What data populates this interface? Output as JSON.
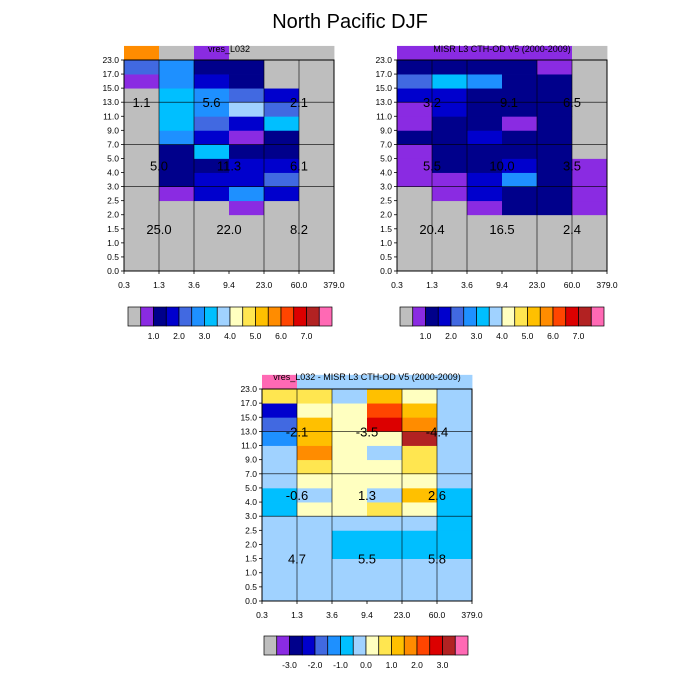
{
  "title": "North Pacific DJF",
  "axes": {
    "y_ticks": [
      "0.0",
      "0.5",
      "1.0",
      "1.5",
      "2.0",
      "2.5",
      "3.0",
      "4.0",
      "5.0",
      "7.0",
      "9.0",
      "11.0",
      "13.0",
      "15.0",
      "17.0",
      "23.0"
    ],
    "x_ticks": [
      "0.3",
      "1.3",
      "3.6",
      "9.4",
      "23.0",
      "60.0",
      "379.0"
    ],
    "y_major": [
      6,
      9,
      12
    ],
    "x_major": [
      1,
      2,
      4,
      5
    ]
  },
  "colorbars": [
    {
      "colors": [
        "#bebebe",
        "#8a2be2",
        "#00008b",
        "#0000cd",
        "#4169e1",
        "#1e90ff",
        "#00bfff",
        "#a0d2ff",
        "#ffffc0",
        "#ffe650",
        "#ffc000",
        "#ff8c00",
        "#ff4500",
        "#dc0000",
        "#b22222",
        "#ff69b4"
      ],
      "labels": [
        "1.0",
        "2.0",
        "3.0",
        "4.0",
        "5.0",
        "6.0",
        "7.0"
      ],
      "label_slots": [
        2,
        4,
        6,
        8,
        10,
        12,
        14
      ]
    },
    {
      "colors": [
        "#bebebe",
        "#8a2be2",
        "#00008b",
        "#0000cd",
        "#4169e1",
        "#1e90ff",
        "#00bfff",
        "#a0d2ff",
        "#ffffc0",
        "#ffe650",
        "#ffc000",
        "#ff8c00",
        "#ff4500",
        "#dc0000",
        "#b22222",
        "#ff69b4"
      ],
      "labels": [
        "1.0",
        "2.0",
        "3.0",
        "4.0",
        "5.0",
        "6.0",
        "7.0"
      ],
      "label_slots": [
        2,
        4,
        6,
        8,
        10,
        12,
        14
      ]
    },
    {
      "colors": [
        "#bebebe",
        "#8a2be2",
        "#00008b",
        "#0000cd",
        "#4169e1",
        "#1e90ff",
        "#00bfff",
        "#a0d2ff",
        "#ffffc0",
        "#ffe650",
        "#ffc000",
        "#ff8c00",
        "#ff4500",
        "#dc0000",
        "#b22222",
        "#ff69b4"
      ],
      "labels": [
        "-3.0",
        "-2.0",
        "-1.0",
        "0.0",
        "1.0",
        "2.0",
        "3.0"
      ],
      "label_slots": [
        2,
        4,
        6,
        8,
        10,
        12,
        14
      ]
    }
  ],
  "chart_data": [
    {
      "type": "heatmap",
      "title": "vres_L032",
      "colorbar": 0,
      "grid": [
        [
          0,
          0,
          0,
          0,
          0,
          0
        ],
        [
          0,
          0,
          0,
          0,
          0,
          0
        ],
        [
          0,
          0,
          0,
          0,
          0,
          0
        ],
        [
          0,
          0,
          0,
          0,
          0,
          0
        ],
        [
          0,
          0,
          0,
          1,
          0,
          0
        ],
        [
          0,
          1,
          3,
          5,
          3,
          0
        ],
        [
          0,
          2,
          3,
          3,
          4,
          0
        ],
        [
          0,
          2,
          2,
          3,
          3,
          0
        ],
        [
          0,
          2,
          6,
          2,
          2,
          0
        ],
        [
          0,
          5,
          3,
          1,
          2,
          0
        ],
        [
          0,
          6,
          4,
          3,
          6,
          0
        ],
        [
          0,
          6,
          5,
          7,
          4,
          0
        ],
        [
          0,
          6,
          5,
          4,
          3,
          0
        ],
        [
          1,
          5,
          3,
          2,
          0,
          0
        ],
        [
          4,
          5,
          2,
          2,
          0,
          0
        ],
        [
          11,
          0,
          1,
          0,
          0,
          0
        ]
      ],
      "cell_labels": [
        {
          "text": "1.1",
          "col": 0.5,
          "row": 12.0
        },
        {
          "text": "5.6",
          "col": 2.5,
          "row": 12.0
        },
        {
          "text": "2.1",
          "col": 5.0,
          "row": 12.0
        },
        {
          "text": "5.0",
          "col": 1.0,
          "row": 7.5
        },
        {
          "text": "11.3",
          "col": 3.0,
          "row": 7.5
        },
        {
          "text": "6.1",
          "col": 5.0,
          "row": 7.5
        },
        {
          "text": "25.0",
          "col": 1.0,
          "row": 3.0
        },
        {
          "text": "22.0",
          "col": 3.0,
          "row": 3.0
        },
        {
          "text": "8.2",
          "col": 5.0,
          "row": 3.0
        }
      ]
    },
    {
      "type": "heatmap",
      "title": "MISR L3 CTH-OD V5 (2000-2009)",
      "colorbar": 1,
      "grid": [
        [
          0,
          0,
          0,
          0,
          0,
          0
        ],
        [
          0,
          0,
          0,
          0,
          0,
          0
        ],
        [
          0,
          0,
          0,
          0,
          0,
          0
        ],
        [
          0,
          0,
          0,
          0,
          0,
          0
        ],
        [
          0,
          0,
          1,
          2,
          2,
          1
        ],
        [
          0,
          1,
          3,
          2,
          2,
          1
        ],
        [
          1,
          1,
          3,
          5,
          2,
          1
        ],
        [
          1,
          2,
          2,
          3,
          2,
          1
        ],
        [
          1,
          2,
          2,
          2,
          2,
          0
        ],
        [
          2,
          2,
          3,
          2,
          2,
          0
        ],
        [
          1,
          2,
          2,
          1,
          2,
          0
        ],
        [
          1,
          3,
          2,
          2,
          2,
          0
        ],
        [
          3,
          3,
          2,
          2,
          2,
          0
        ],
        [
          4,
          6,
          5,
          2,
          2,
          0
        ],
        [
          2,
          2,
          2,
          2,
          1,
          0
        ],
        [
          1,
          1,
          1,
          1,
          1,
          0
        ]
      ],
      "cell_labels": [
        {
          "text": "3.2",
          "col": 1.0,
          "row": 12.0
        },
        {
          "text": "9.1",
          "col": 3.2,
          "row": 12.0
        },
        {
          "text": "6.5",
          "col": 5.0,
          "row": 12.0
        },
        {
          "text": "5.5",
          "col": 1.0,
          "row": 7.5
        },
        {
          "text": "10.0",
          "col": 3.0,
          "row": 7.5
        },
        {
          "text": "3.5",
          "col": 5.0,
          "row": 7.5
        },
        {
          "text": "20.4",
          "col": 1.0,
          "row": 3.0
        },
        {
          "text": "16.5",
          "col": 3.0,
          "row": 3.0
        },
        {
          "text": "2.4",
          "col": 5.0,
          "row": 3.0
        }
      ]
    },
    {
      "type": "heatmap",
      "title": "vres_L032 - MISR L3 CTH-OD V5 (2000-2009)",
      "colorbar": 2,
      "grid": [
        [
          7,
          7,
          7,
          7,
          7,
          7
        ],
        [
          7,
          7,
          7,
          7,
          7,
          7
        ],
        [
          7,
          7,
          7,
          7,
          7,
          7
        ],
        [
          7,
          7,
          6,
          6,
          6,
          6
        ],
        [
          7,
          7,
          6,
          6,
          6,
          6
        ],
        [
          7,
          7,
          7,
          7,
          7,
          6
        ],
        [
          6,
          8,
          8,
          9,
          8,
          6
        ],
        [
          6,
          7,
          8,
          7,
          10,
          6
        ],
        [
          7,
          8,
          8,
          8,
          8,
          7
        ],
        [
          7,
          9,
          8,
          8,
          9,
          7
        ],
        [
          7,
          11,
          8,
          7,
          9,
          7
        ],
        [
          5,
          10,
          8,
          8,
          14,
          7
        ],
        [
          4,
          10,
          8,
          13,
          11,
          7
        ],
        [
          3,
          8,
          8,
          12,
          10,
          7
        ],
        [
          9,
          9,
          7,
          10,
          8,
          7
        ],
        [
          15,
          7,
          7,
          7,
          7,
          7
        ]
      ],
      "cell_labels": [
        {
          "text": "-2.1",
          "col": 1.0,
          "row": 12.0
        },
        {
          "text": "-3.5",
          "col": 3.0,
          "row": 12.0
        },
        {
          "text": "-4.4",
          "col": 5.0,
          "row": 12.0
        },
        {
          "text": "-0.6",
          "col": 1.0,
          "row": 7.5
        },
        {
          "text": "1.3",
          "col": 3.0,
          "row": 7.5
        },
        {
          "text": "2.6",
          "col": 5.0,
          "row": 7.5
        },
        {
          "text": "4.7",
          "col": 1.0,
          "row": 3.0
        },
        {
          "text": "5.5",
          "col": 3.0,
          "row": 3.0
        },
        {
          "text": "5.8",
          "col": 5.0,
          "row": 3.0
        }
      ]
    }
  ]
}
